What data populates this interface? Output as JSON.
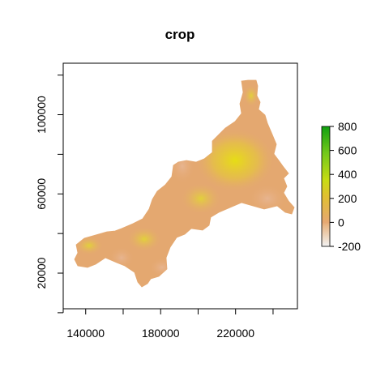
{
  "chart_data": {
    "type": "heatmap",
    "title": "crop",
    "xlabel": "",
    "ylabel": "",
    "xlim": [
      128000,
      253000
    ],
    "ylim": [
      2000,
      126000
    ],
    "x_ticks": [
      {
        "value": 140000,
        "label": "140000"
      },
      {
        "value": 160000,
        "label": ""
      },
      {
        "value": 180000,
        "label": "180000"
      },
      {
        "value": 200000,
        "label": ""
      },
      {
        "value": 220000,
        "label": "220000"
      },
      {
        "value": 240000,
        "label": ""
      }
    ],
    "y_ticks": [
      {
        "value": 0,
        "label": ""
      },
      {
        "value": 20000,
        "label": "20000"
      },
      {
        "value": 40000,
        "label": ""
      },
      {
        "value": 60000,
        "label": "60000"
      },
      {
        "value": 80000,
        "label": ""
      },
      {
        "value": 100000,
        "label": "100000"
      },
      {
        "value": 120000,
        "label": ""
      }
    ],
    "legend": {
      "placement": "right",
      "range": [
        -200,
        800
      ],
      "ticks": [
        {
          "value": 800,
          "label": "800"
        },
        {
          "value": 600,
          "label": "600"
        },
        {
          "value": 400,
          "label": "400"
        },
        {
          "value": 200,
          "label": "200"
        },
        {
          "value": 0,
          "label": "0"
        },
        {
          "value": -200,
          "label": "-200"
        }
      ],
      "colors": [
        "#f2f2f2",
        "#e8b888",
        "#e6a872",
        "#e0c030",
        "#c8dc14",
        "#72c81a",
        "#10a010"
      ]
    },
    "grid": false
  }
}
